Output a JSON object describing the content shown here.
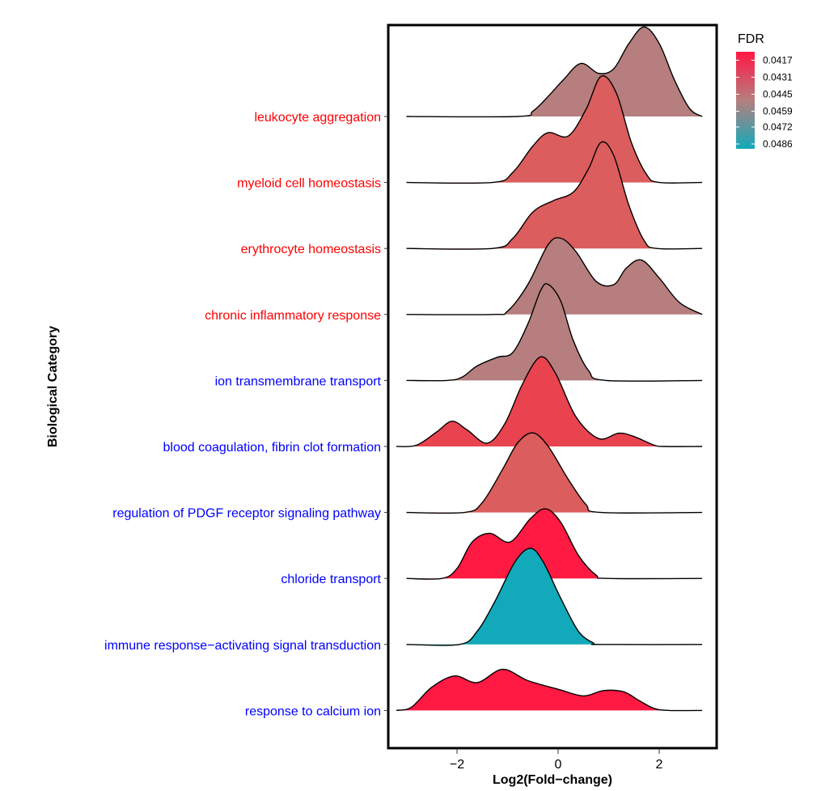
{
  "chart_data": {
    "type": "ridgeline",
    "xlabel": "Log2(Fold−change)",
    "ylabel": "Biological Category",
    "xlim": [
      -3.2,
      3.0
    ],
    "x_ticks": [
      -2,
      0,
      2
    ],
    "x_tick_labels": [
      "−2",
      "0",
      "2"
    ],
    "legend": {
      "title": "FDR",
      "position": "right",
      "labels": [
        "0.0417",
        "0.0431",
        "0.0445",
        "0.0459",
        "0.0472",
        "0.0486"
      ],
      "range": [
        0.041,
        0.049
      ],
      "color_low": "#ff1744",
      "color_mid": "#b67e7e",
      "color_high": "#12aaba"
    },
    "categories": [
      {
        "name": "leukocyte aggregation",
        "label_color": "#ff0000",
        "fdr": 0.0449,
        "fill": "#b67e7e",
        "curve": [
          [
            -3.0,
            0
          ],
          [
            -0.8,
            0
          ],
          [
            -0.5,
            0.08
          ],
          [
            -0.2,
            0.3
          ],
          [
            0.1,
            0.55
          ],
          [
            0.45,
            0.8
          ],
          [
            0.8,
            0.65
          ],
          [
            1.1,
            0.72
          ],
          [
            1.4,
            1.1
          ],
          [
            1.7,
            1.35
          ],
          [
            2.0,
            1.1
          ],
          [
            2.3,
            0.55
          ],
          [
            2.6,
            0.12
          ],
          [
            2.85,
            0
          ]
        ]
      },
      {
        "name": "myeloid cell homeostasis",
        "label_color": "#ff0000",
        "fdr": 0.0437,
        "fill": "#dc5d5d",
        "curve": [
          [
            -3.0,
            0
          ],
          [
            -1.3,
            0
          ],
          [
            -0.9,
            0.15
          ],
          [
            -0.5,
            0.55
          ],
          [
            -0.2,
            0.75
          ],
          [
            0.2,
            0.7
          ],
          [
            0.55,
            1.1
          ],
          [
            0.85,
            1.6
          ],
          [
            1.15,
            1.35
          ],
          [
            1.45,
            0.6
          ],
          [
            1.75,
            0.12
          ],
          [
            2.0,
            0
          ],
          [
            2.85,
            0
          ]
        ]
      },
      {
        "name": "erythrocyte homeostasis",
        "label_color": "#ff0000",
        "fdr": 0.0437,
        "fill": "#dc5d5d",
        "curve": [
          [
            -3.0,
            0
          ],
          [
            -1.3,
            0
          ],
          [
            -0.9,
            0.15
          ],
          [
            -0.5,
            0.55
          ],
          [
            -0.1,
            0.72
          ],
          [
            0.3,
            0.85
          ],
          [
            0.6,
            1.2
          ],
          [
            0.85,
            1.6
          ],
          [
            1.1,
            1.4
          ],
          [
            1.4,
            0.65
          ],
          [
            1.7,
            0.12
          ],
          [
            1.95,
            0
          ],
          [
            2.85,
            0
          ]
        ]
      },
      {
        "name": "chronic inflammatory response",
        "label_color": "#ff0000",
        "fdr": 0.0449,
        "fill": "#b67e7e",
        "curve": [
          [
            -3.0,
            0
          ],
          [
            -1.3,
            0
          ],
          [
            -1.0,
            0.05
          ],
          [
            -0.6,
            0.45
          ],
          [
            -0.2,
            1.05
          ],
          [
            0.05,
            1.15
          ],
          [
            0.35,
            0.95
          ],
          [
            0.75,
            0.5
          ],
          [
            1.1,
            0.45
          ],
          [
            1.35,
            0.7
          ],
          [
            1.65,
            0.82
          ],
          [
            2.0,
            0.55
          ],
          [
            2.4,
            0.18
          ],
          [
            2.85,
            0
          ]
        ]
      },
      {
        "name": "ion transmembrane transport",
        "label_color": "#0000ff",
        "fdr": 0.0449,
        "fill": "#b67e7e",
        "curve": [
          [
            -3.0,
            0
          ],
          [
            -2.2,
            0
          ],
          [
            -1.9,
            0.05
          ],
          [
            -1.6,
            0.22
          ],
          [
            -1.2,
            0.35
          ],
          [
            -0.9,
            0.42
          ],
          [
            -0.6,
            0.85
          ],
          [
            -0.35,
            1.35
          ],
          [
            -0.2,
            1.45
          ],
          [
            0.05,
            1.2
          ],
          [
            0.3,
            0.6
          ],
          [
            0.6,
            0.15
          ],
          [
            0.95,
            0
          ],
          [
            2.85,
            0
          ]
        ]
      },
      {
        "name": "blood coagulation, fibrin clot formation",
        "label_color": "#0000ff",
        "fdr": 0.0425,
        "fill": "#e8434f",
        "curve": [
          [
            -3.2,
            0
          ],
          [
            -2.8,
            0.02
          ],
          [
            -2.4,
            0.22
          ],
          [
            -2.1,
            0.38
          ],
          [
            -1.8,
            0.25
          ],
          [
            -1.4,
            0.05
          ],
          [
            -1.05,
            0.35
          ],
          [
            -0.7,
            0.95
          ],
          [
            -0.35,
            1.35
          ],
          [
            -0.05,
            1.1
          ],
          [
            0.35,
            0.45
          ],
          [
            0.8,
            0.12
          ],
          [
            1.2,
            0.2
          ],
          [
            1.5,
            0.15
          ],
          [
            1.9,
            0.02
          ],
          [
            2.1,
            0
          ],
          [
            2.85,
            0
          ]
        ]
      },
      {
        "name": "regulation of PDGF receptor signaling pathway",
        "label_color": "#0000ff",
        "fdr": 0.0437,
        "fill": "#dc5d5d",
        "curve": [
          [
            -3.0,
            0
          ],
          [
            -1.85,
            0
          ],
          [
            -1.5,
            0.15
          ],
          [
            -1.1,
            0.65
          ],
          [
            -0.8,
            1.05
          ],
          [
            -0.5,
            1.2
          ],
          [
            -0.2,
            1.0
          ],
          [
            0.2,
            0.5
          ],
          [
            0.55,
            0.12
          ],
          [
            0.85,
            0
          ],
          [
            2.85,
            0
          ]
        ]
      },
      {
        "name": "chloride transport",
        "label_color": "#0000ff",
        "fdr": 0.0417,
        "fill": "#ff1a43",
        "curve": [
          [
            -3.0,
            0
          ],
          [
            -2.3,
            0
          ],
          [
            -2.0,
            0.15
          ],
          [
            -1.7,
            0.55
          ],
          [
            -1.35,
            0.68
          ],
          [
            -0.95,
            0.55
          ],
          [
            -0.55,
            0.9
          ],
          [
            -0.25,
            1.05
          ],
          [
            0.05,
            0.85
          ],
          [
            0.4,
            0.35
          ],
          [
            0.75,
            0.05
          ],
          [
            1.0,
            0
          ],
          [
            2.85,
            0
          ]
        ]
      },
      {
        "name": "immune response−activating signal transduction",
        "label_color": "#0000ff",
        "fdr": 0.0486,
        "fill": "#12aaba",
        "curve": [
          [
            -3.0,
            0
          ],
          [
            -1.95,
            0
          ],
          [
            -1.6,
            0.2
          ],
          [
            -1.25,
            0.65
          ],
          [
            -0.85,
            1.25
          ],
          [
            -0.55,
            1.45
          ],
          [
            -0.3,
            1.25
          ],
          [
            0.05,
            0.7
          ],
          [
            0.4,
            0.2
          ],
          [
            0.7,
            0.02
          ],
          [
            0.85,
            0
          ],
          [
            2.85,
            0
          ]
        ]
      },
      {
        "name": "response to calcium ion",
        "label_color": "#0000ff",
        "fdr": 0.0417,
        "fill": "#ff1a43",
        "curve": [
          [
            -3.2,
            0
          ],
          [
            -2.9,
            0.05
          ],
          [
            -2.5,
            0.35
          ],
          [
            -2.05,
            0.52
          ],
          [
            -1.6,
            0.42
          ],
          [
            -1.1,
            0.62
          ],
          [
            -0.6,
            0.45
          ],
          [
            0.0,
            0.32
          ],
          [
            0.5,
            0.22
          ],
          [
            0.9,
            0.3
          ],
          [
            1.3,
            0.28
          ],
          [
            1.6,
            0.15
          ],
          [
            1.9,
            0.03
          ],
          [
            2.2,
            0
          ],
          [
            2.85,
            0
          ]
        ]
      }
    ]
  }
}
